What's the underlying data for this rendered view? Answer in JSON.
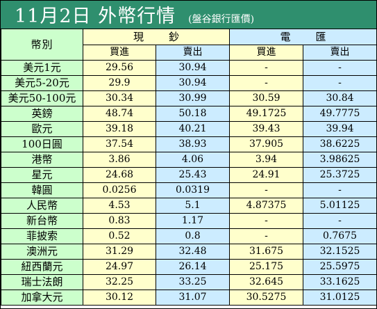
{
  "header": {
    "title": "11月2日 外幣行情",
    "subtitle": "(盤谷銀行匯價)"
  },
  "table": {
    "currency_header": "幣別",
    "group_cash": "現鈔",
    "group_tt": "電匯",
    "buy_label": "買進",
    "sell_label": "賣出",
    "rows": [
      {
        "currency": "美元1元",
        "cash_buy": "29.56",
        "cash_sell": "30.94",
        "tt_buy": "-",
        "tt_sell": "-"
      },
      {
        "currency": "美元5-20元",
        "cash_buy": "29.9",
        "cash_sell": "30.94",
        "tt_buy": "-",
        "tt_sell": "-"
      },
      {
        "currency": "美元50-100元",
        "cash_buy": "30.34",
        "cash_sell": "30.99",
        "tt_buy": "30.59",
        "tt_sell": "30.84"
      },
      {
        "currency": "英鎊",
        "cash_buy": "48.74",
        "cash_sell": "50.18",
        "tt_buy": "49.1725",
        "tt_sell": "49.7775"
      },
      {
        "currency": "歐元",
        "cash_buy": "39.18",
        "cash_sell": "40.21",
        "tt_buy": "39.43",
        "tt_sell": "39.94"
      },
      {
        "currency": "100日圓",
        "cash_buy": "37.54",
        "cash_sell": "38.93",
        "tt_buy": "37.905",
        "tt_sell": "38.6225"
      },
      {
        "currency": "港幣",
        "cash_buy": "3.86",
        "cash_sell": "4.06",
        "tt_buy": "3.94",
        "tt_sell": "3.98625"
      },
      {
        "currency": "星元",
        "cash_buy": "24.68",
        "cash_sell": "25.43",
        "tt_buy": "24.91",
        "tt_sell": "25.3725"
      },
      {
        "currency": "韓圓",
        "cash_buy": "0.0256",
        "cash_sell": "0.0319",
        "tt_buy": "-",
        "tt_sell": "-"
      },
      {
        "currency": "人民幣",
        "cash_buy": "4.53",
        "cash_sell": "5.1",
        "tt_buy": "4.87375",
        "tt_sell": "5.01125"
      },
      {
        "currency": "新台幣",
        "cash_buy": "0.83",
        "cash_sell": "1.17",
        "tt_buy": "-",
        "tt_sell": "-"
      },
      {
        "currency": "菲披索",
        "cash_buy": "0.52",
        "cash_sell": "0.8",
        "tt_buy": "-",
        "tt_sell": "0.7675"
      },
      {
        "currency": "澳洲元",
        "cash_buy": "31.29",
        "cash_sell": "32.48",
        "tt_buy": "31.675",
        "tt_sell": "32.1525"
      },
      {
        "currency": "紐西蘭元",
        "cash_buy": "24.97",
        "cash_sell": "26.14",
        "tt_buy": "25.175",
        "tt_sell": "25.5975"
      },
      {
        "currency": "瑞士法朗",
        "cash_buy": "32.25",
        "cash_sell": "33.25",
        "tt_buy": "32.645",
        "tt_sell": "33.1625"
      },
      {
        "currency": "加拿大元",
        "cash_buy": "30.12",
        "cash_sell": "31.07",
        "tt_buy": "30.5275",
        "tt_sell": "31.0125"
      }
    ]
  },
  "colors": {
    "title_bg": "#2f8f6e",
    "currency_col_bg": "#ccffcc",
    "buy_col_bg": "#ffffcc",
    "sell_col_bg": "#ccecff"
  }
}
